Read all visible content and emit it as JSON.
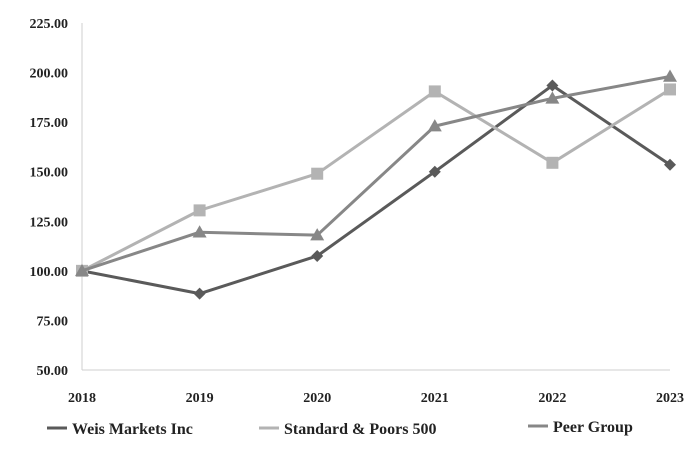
{
  "chart_data": {
    "type": "line",
    "title": "",
    "xlabel": "",
    "ylabel": "",
    "x": [
      "2018",
      "2019",
      "2020",
      "2021",
      "2022",
      "2023"
    ],
    "ylim": [
      50,
      225
    ],
    "y_ticks": [
      "50.00",
      "75.00",
      "100.00",
      "125.00",
      "150.00",
      "175.00",
      "200.00",
      "225.00"
    ],
    "grid": false,
    "legend_position": "bottom",
    "series": [
      {
        "name": "Weis Markets Inc",
        "values": [
          100.0,
          88.5,
          107.5,
          150.0,
          193.5,
          153.5
        ],
        "color": "#5a5a5a",
        "marker": "diamond"
      },
      {
        "name": "Standard & Poors 500",
        "values": [
          100.0,
          130.5,
          149.0,
          190.5,
          154.5,
          191.5
        ],
        "color": "#b3b3b3",
        "marker": "square"
      },
      {
        "name": "Peer Group",
        "values": [
          100.0,
          119.5,
          118.0,
          173.0,
          187.0,
          198.0
        ],
        "color": "#878787",
        "marker": "triangle"
      }
    ]
  }
}
